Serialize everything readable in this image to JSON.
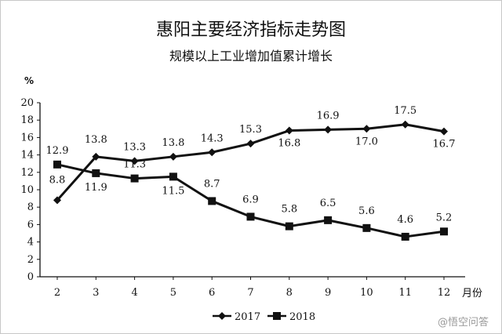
{
  "watermark": "@悟空问答",
  "colors": {
    "line": "#111111",
    "text": "#111111"
  },
  "chart_data": {
    "type": "line",
    "title": "惠阳主要经济指标走势图",
    "subtitle": "规模以上工业增加值累计增长",
    "ylabel": "%",
    "xlabel": "月份",
    "categories": [
      "2",
      "3",
      "4",
      "5",
      "6",
      "7",
      "8",
      "9",
      "10",
      "11",
      "12"
    ],
    "ylim": [
      0,
      20
    ],
    "yticks": [
      "0",
      "2",
      "4",
      "6",
      "8",
      "10",
      "12",
      "14",
      "16",
      "18",
      "20"
    ],
    "legend_position": "bottom",
    "series": [
      {
        "name": "2017",
        "marker": "diamond",
        "values": [
          8.8,
          13.8,
          13.3,
          13.8,
          14.3,
          15.3,
          16.8,
          16.9,
          17.0,
          17.5,
          16.7
        ],
        "labels": [
          "8.8",
          "13.8",
          "13.3",
          "13.8",
          "14.3",
          "15.3",
          "16.8",
          "16.9",
          "17.0",
          "17.5",
          "16.7"
        ]
      },
      {
        "name": "2018",
        "marker": "square",
        "values": [
          12.9,
          11.9,
          11.3,
          11.5,
          8.7,
          6.9,
          5.8,
          6.5,
          5.6,
          4.6,
          5.2
        ],
        "labels": [
          "12.9",
          "11.9",
          "11.3",
          "11.5",
          "8.7",
          "6.9",
          "5.8",
          "6.5",
          "5.6",
          "4.6",
          "5.2"
        ]
      }
    ]
  }
}
